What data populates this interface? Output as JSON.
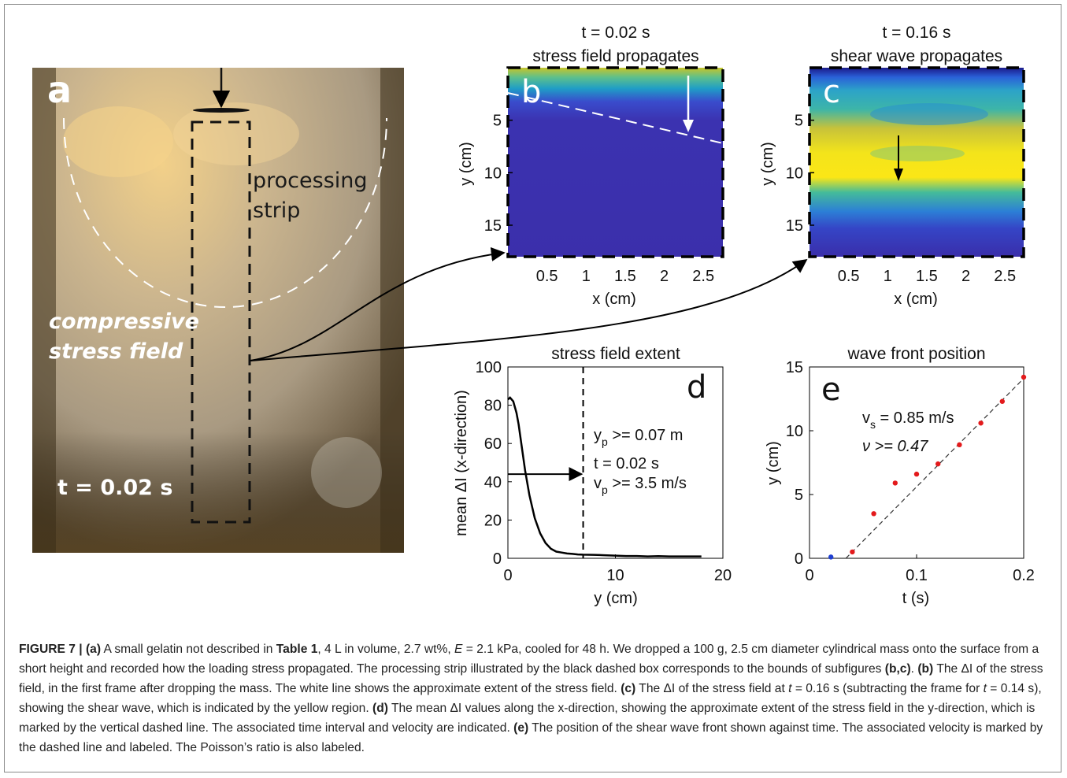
{
  "panel_a": {
    "letter": "a",
    "label_processing_line1": "processing",
    "label_processing_line2": "strip",
    "label_stress_line1": "compressive",
    "label_stress_line2": "stress field",
    "time_label": "t = 0.02 s"
  },
  "panel_b": {
    "letter": "b",
    "title_line1": "t = 0.02 s",
    "title_line2": "stress field propagates",
    "xlabel": "x (cm)",
    "ylabel": "y (cm)",
    "xticks": [
      "0.5",
      "1",
      "1.5",
      "2",
      "2.5"
    ],
    "yticks": [
      "5",
      "10",
      "15"
    ]
  },
  "panel_c": {
    "letter": "c",
    "title_line1": "t = 0.16 s",
    "title_line2": "shear wave propagates",
    "xlabel": "x (cm)",
    "ylabel": "y (cm)",
    "xticks": [
      "0.5",
      "1",
      "1.5",
      "2",
      "2.5"
    ],
    "yticks": [
      "5",
      "10",
      "15"
    ]
  },
  "panel_d": {
    "letter": "d",
    "title": "stress field extent",
    "xlabel": "y (cm)",
    "ylabel": "mean ΔI (x-direction)",
    "xticks": [
      "0",
      "10",
      "20"
    ],
    "yticks": [
      "0",
      "20",
      "40",
      "60",
      "80",
      "100"
    ],
    "ann_yp_main": "y",
    "ann_yp_sub": "p",
    "ann_yp_rest": " >= 0.07 m",
    "ann_t": "t = 0.02 s",
    "ann_vp_main": "v",
    "ann_vp_sub": "p",
    "ann_vp_rest": " >= 3.5 m/s"
  },
  "panel_e": {
    "letter": "e",
    "title": "wave front position",
    "xlabel": "t (s)",
    "ylabel": "y (cm)",
    "xticks": [
      "0",
      "0.1",
      "0.2"
    ],
    "yticks": [
      "0",
      "5",
      "10",
      "15"
    ],
    "ann_vs_main": "v",
    "ann_vs_sub": "s",
    "ann_vs_rest": " = 0.85 m/s",
    "ann_nu": "ν >= 0.47"
  },
  "chart_data": [
    {
      "type": "line",
      "panel": "d",
      "title": "stress field extent",
      "xlabel": "y (cm)",
      "ylabel": "mean ΔI (x-direction)",
      "xlim": [
        0,
        20
      ],
      "ylim": [
        0,
        100
      ],
      "x": [
        0,
        0.2,
        0.5,
        0.8,
        1.0,
        1.3,
        1.6,
        2.0,
        2.5,
        3.0,
        3.5,
        4.0,
        4.5,
        5.0,
        5.5,
        6.0,
        6.5,
        7.0,
        8.0,
        9.0,
        10.0,
        11.0,
        12.0,
        13.0,
        14.0,
        15.0,
        16.0,
        17.0,
        18.0
      ],
      "y": [
        83,
        84,
        82,
        76,
        70,
        58,
        46,
        33,
        21,
        13,
        8,
        5,
        3.5,
        3,
        2.5,
        2.3,
        2.0,
        1.9,
        1.8,
        1.6,
        1.4,
        1.2,
        1.2,
        1.0,
        1.1,
        1.0,
        1.0,
        1.0,
        1.0
      ],
      "cutoff_line_x": 7,
      "arrow_level_y": 44
    },
    {
      "type": "scatter",
      "panel": "e",
      "title": "wave front position",
      "xlabel": "t (s)",
      "ylabel": "y (cm)",
      "xlim": [
        0,
        0.2
      ],
      "ylim": [
        0,
        15
      ],
      "series": [
        {
          "color": "#e31a1c",
          "x": [
            0.04,
            0.06,
            0.08,
            0.1,
            0.12,
            0.14,
            0.16,
            0.18,
            0.2
          ],
          "y": [
            0.5,
            3.5,
            5.9,
            6.6,
            7.4,
            8.9,
            10.6,
            12.3,
            14.2
          ]
        },
        {
          "color": "#1f3fd1",
          "x": [
            0.02
          ],
          "y": [
            0.1
          ]
        }
      ],
      "fit_line": {
        "x": [
          0.034,
          0.2
        ],
        "y": [
          0,
          14.1
        ]
      }
    }
  ],
  "caption": {
    "figure_label": "FIGURE 7 | ",
    "a_ref": "(a)",
    "text_a1": " A small gelatin not described in ",
    "table_ref": "Table 1",
    "text_a2": ", 4 L in volume, 2.7 wt%, ",
    "E_sym": "E",
    "text_a3": " = 2.1 kPa, cooled for 48 h. We dropped a 100 g, 2.5 cm diameter cylindrical mass onto the surface from a short height and recorded how the loading stress propagated. The processing strip illustrated by the black dashed box corresponds to the bounds of subfigures ",
    "bc_ref": "(b,c)",
    "text_a4": ". ",
    "b_ref": "(b)",
    "text_b": " The ΔI of the stress field, in the first frame after dropping the mass. The white line shows the approximate extent of the stress field. ",
    "c_ref": "(c)",
    "text_c1": " The ΔI of the stress field at ",
    "t_sym1": "t",
    "text_c2": " = 0.16 s (subtracting the frame for ",
    "t_sym2": "t",
    "text_c3": " = 0.14 s), showing the shear wave, which is indicated by the yellow region. ",
    "d_ref": "(d)",
    "text_d": " The mean ΔI values along the x-direction, showing the approximate extent of the stress field in the y-direction, which is marked by the vertical dashed line. The associated time interval and velocity are indicated. ",
    "e_ref": "(e)",
    "text_e": " The position of the shear wave front shown against time. The associated velocity is marked by the dashed line and labeled. The Poisson’s ratio is also labeled."
  }
}
